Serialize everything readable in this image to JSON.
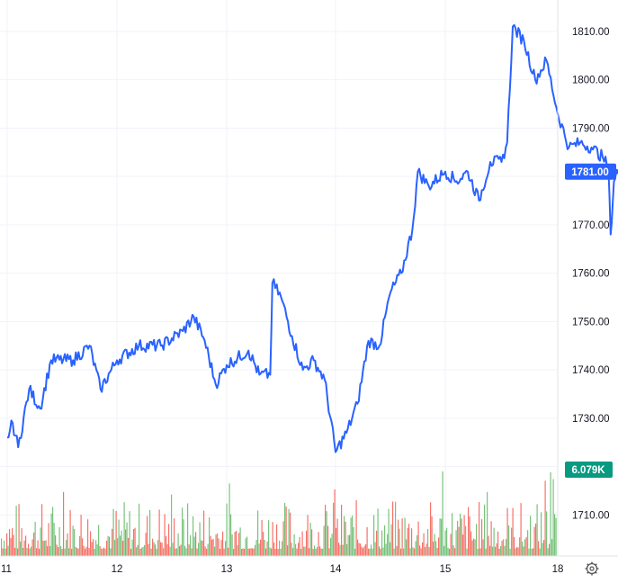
{
  "chart_data": {
    "type": "line",
    "x_ticks": [
      "11",
      "12",
      "13",
      "14",
      "15",
      "18"
    ],
    "y_ticks": [
      1710,
      1720,
      1730,
      1740,
      1750,
      1760,
      1770,
      1780,
      1790,
      1800,
      1810
    ],
    "y_tick_labels": [
      "1710.00",
      "",
      "1730.00",
      "1740.00",
      "1750.00",
      "1760.00",
      "1770.00",
      "",
      "1790.00",
      "1800.00",
      "1810.00"
    ],
    "ylim": [
      1701.5,
      1816.5
    ],
    "grid": true,
    "price_series": {
      "color": "#2962ff",
      "points": [
        [
          0.0,
          1726
        ],
        [
          0.05,
          1729
        ],
        [
          0.1,
          1724
        ],
        [
          0.2,
          1736
        ],
        [
          0.3,
          1732
        ],
        [
          0.4,
          1742
        ],
        [
          0.6,
          1742
        ],
        [
          0.75,
          1745
        ],
        [
          0.85,
          1736
        ],
        [
          1.0,
          1742
        ],
        [
          1.2,
          1745
        ],
        [
          1.4,
          1745
        ],
        [
          1.6,
          1748
        ],
        [
          1.7,
          1751
        ],
        [
          1.8,
          1746
        ],
        [
          1.9,
          1737
        ],
        [
          2.0,
          1741
        ],
        [
          2.2,
          1744
        ],
        [
          2.3,
          1739
        ],
        [
          2.4,
          1739
        ],
        [
          2.42,
          1758
        ],
        [
          2.5,
          1755
        ],
        [
          2.6,
          1747
        ],
        [
          2.7,
          1740
        ],
        [
          2.8,
          1742
        ],
        [
          2.9,
          1738
        ],
        [
          3.0,
          1723
        ],
        [
          3.1,
          1727
        ],
        [
          3.2,
          1733
        ],
        [
          3.3,
          1746
        ],
        [
          3.4,
          1745
        ],
        [
          3.5,
          1756
        ],
        [
          3.6,
          1760
        ],
        [
          3.7,
          1769
        ],
        [
          3.75,
          1781
        ],
        [
          3.85,
          1778
        ],
        [
          4.0,
          1781
        ],
        [
          4.1,
          1779
        ],
        [
          4.2,
          1781
        ],
        [
          4.3,
          1775
        ],
        [
          4.4,
          1783
        ],
        [
          4.5,
          1783
        ],
        [
          4.55,
          1787
        ],
        [
          4.6,
          1811
        ],
        [
          4.7,
          1808
        ],
        [
          4.8,
          1800
        ],
        [
          4.9,
          1804
        ],
        [
          5.0,
          1793
        ],
        [
          5.1,
          1786
        ],
        [
          5.2,
          1787
        ],
        [
          5.3,
          1786
        ],
        [
          5.4,
          1784
        ],
        [
          5.45,
          1782
        ],
        [
          5.47,
          1768
        ],
        [
          5.5,
          1779
        ],
        [
          5.52,
          1781
        ]
      ]
    },
    "volume_series": {
      "up_color": "#4caf50",
      "down_color": "#f44336"
    },
    "last_price_label": "1781.00",
    "last_price": 1781.0,
    "last_price_color": "#2962ff",
    "volume_label": "6.079K",
    "volume_label_color": "#089981"
  },
  "toolbar": {
    "settings_icon": "settings-gear-icon"
  }
}
